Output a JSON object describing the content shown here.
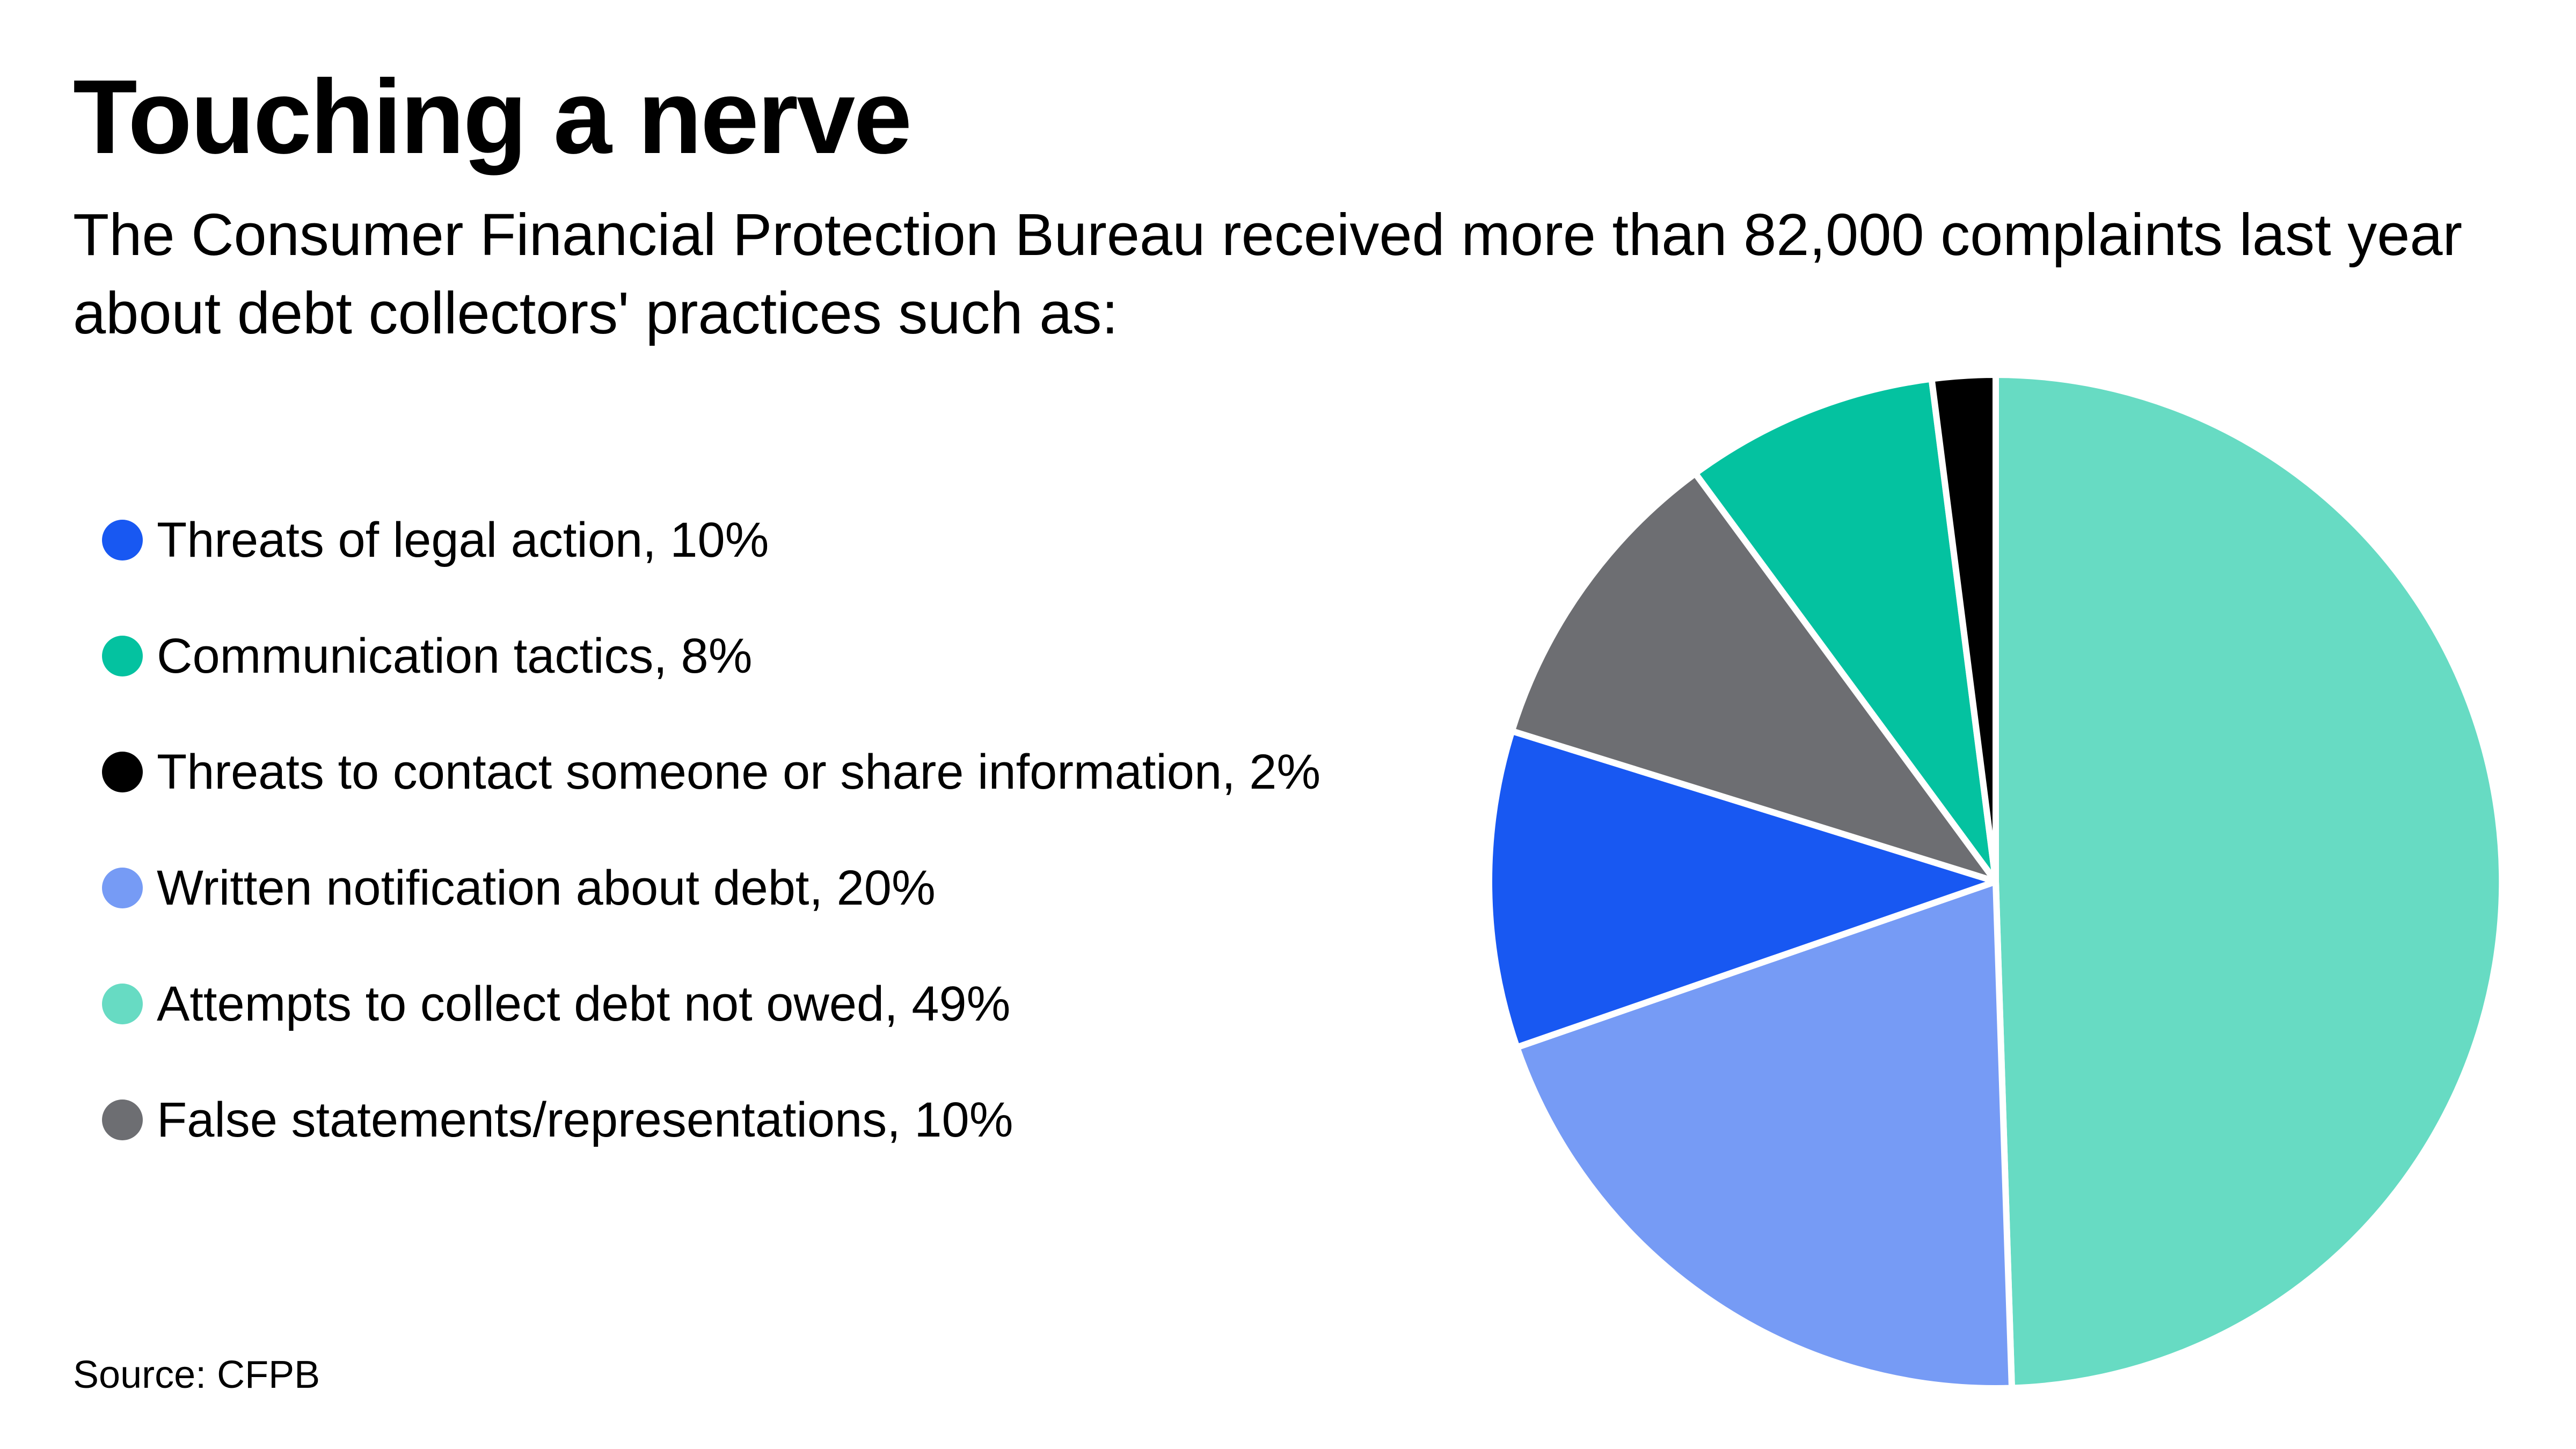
{
  "header": {
    "title": "Touching a nerve",
    "subtitle": "The Consumer Financial Protection Bureau received more than 82,000 complaints last year about debt collectors' practices such as:"
  },
  "legend": [
    {
      "label": "Threats of legal action, 10%",
      "color": "#1858f2"
    },
    {
      "label": "Communication tactics, 8%",
      "color": "#04c2a0"
    },
    {
      "label": "Threats to contact someone or share information, 2%",
      "color": "#000000"
    },
    {
      "label": "Written notification about debt, 20%",
      "color": "#769bf5"
    },
    {
      "label": "Attempts to collect debt not owed, 49%",
      "color": "#67dbc3"
    },
    {
      "label": "False statements/representations, 10%",
      "color": "#6d6e72"
    }
  ],
  "footer": {
    "source": "Source: CFPB"
  },
  "chart_data": {
    "type": "pie",
    "title": "Touching a nerve",
    "start": "12 o'clock",
    "direction": "clockwise",
    "slices": [
      {
        "label": "Attempts to collect debt not owed",
        "value": 49,
        "color": "#67dbc3"
      },
      {
        "label": "Written notification about debt",
        "value": 20,
        "color": "#769bf5"
      },
      {
        "label": "Threats of legal action",
        "value": 10,
        "color": "#1858f2"
      },
      {
        "label": "False statements/representations",
        "value": 10,
        "color": "#6d6e72"
      },
      {
        "label": "Communication tactics",
        "value": 8,
        "color": "#04c2a0"
      },
      {
        "label": "Threats to contact someone or share information",
        "value": 2,
        "color": "#000000"
      }
    ],
    "legend_position": "left"
  }
}
